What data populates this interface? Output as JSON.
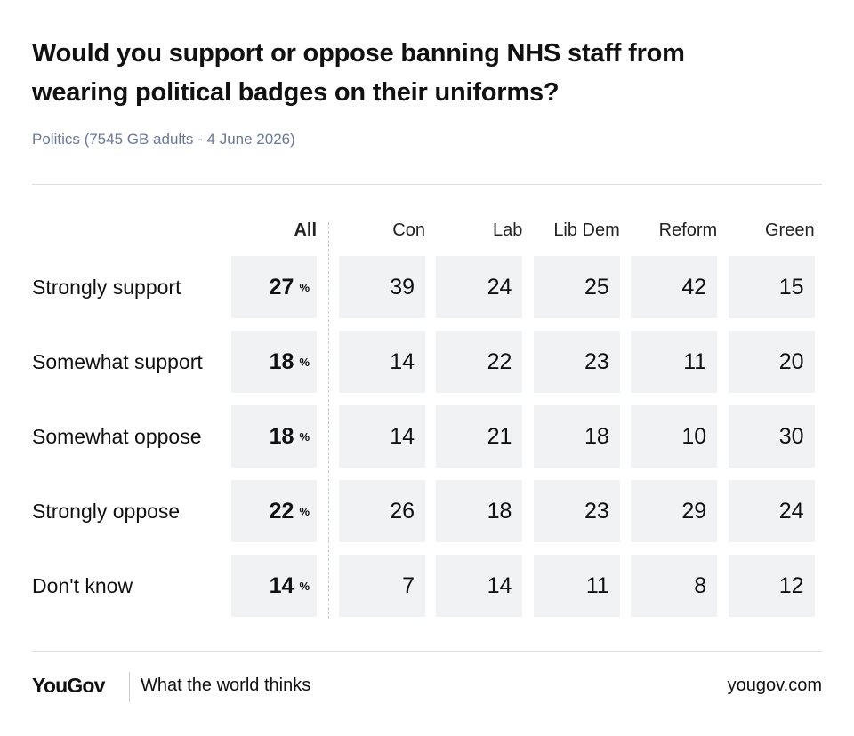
{
  "header": {
    "title": "Would you support or oppose banning NHS staff from wearing political badges on their uniforms?",
    "subtitle": "Politics (7545 GB adults - 4 June 2026)"
  },
  "table": {
    "columns": [
      "All",
      "Con",
      "Lab",
      "Lib Dem",
      "Reform",
      "Green"
    ],
    "unit": "%",
    "rows": [
      {
        "label": "Strongly support",
        "values": [
          27,
          39,
          24,
          25,
          42,
          15
        ]
      },
      {
        "label": "Somewhat support",
        "values": [
          18,
          14,
          22,
          23,
          11,
          20
        ]
      },
      {
        "label": "Somewhat oppose",
        "values": [
          18,
          14,
          21,
          18,
          10,
          30
        ]
      },
      {
        "label": "Strongly oppose",
        "values": [
          22,
          26,
          18,
          23,
          29,
          24
        ]
      },
      {
        "label": "Don't know",
        "values": [
          14,
          7,
          14,
          11,
          8,
          12
        ]
      }
    ]
  },
  "footer": {
    "brand": "YouGov",
    "tagline": "What the world thinks",
    "url": "yougov.com"
  }
}
